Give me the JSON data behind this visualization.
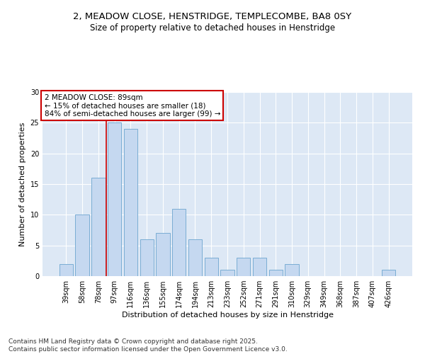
{
  "title_line1": "2, MEADOW CLOSE, HENSTRIDGE, TEMPLECOMBE, BA8 0SY",
  "title_line2": "Size of property relative to detached houses in Henstridge",
  "xlabel": "Distribution of detached houses by size in Henstridge",
  "ylabel": "Number of detached properties",
  "categories": [
    "39sqm",
    "58sqm",
    "78sqm",
    "97sqm",
    "116sqm",
    "136sqm",
    "155sqm",
    "174sqm",
    "194sqm",
    "213sqm",
    "233sqm",
    "252sqm",
    "271sqm",
    "291sqm",
    "310sqm",
    "329sqm",
    "349sqm",
    "368sqm",
    "387sqm",
    "407sqm",
    "426sqm"
  ],
  "values": [
    2,
    10,
    16,
    25,
    24,
    6,
    7,
    11,
    6,
    3,
    1,
    3,
    3,
    1,
    2,
    0,
    0,
    0,
    0,
    0,
    1
  ],
  "bar_color": "#c5d8f0",
  "bar_edge_color": "#7aadd4",
  "vline_x": 2.5,
  "vline_color": "#cc0000",
  "annotation_text": "2 MEADOW CLOSE: 89sqm\n← 15% of detached houses are smaller (18)\n84% of semi-detached houses are larger (99) →",
  "annotation_box_color": "#ffffff",
  "annotation_box_edge": "#cc0000",
  "ylim": [
    0,
    30
  ],
  "yticks": [
    0,
    5,
    10,
    15,
    20,
    25,
    30
  ],
  "background_color": "#dde8f5",
  "footer_text": "Contains HM Land Registry data © Crown copyright and database right 2025.\nContains public sector information licensed under the Open Government Licence v3.0.",
  "title_fontsize": 9.5,
  "subtitle_fontsize": 8.5,
  "axis_label_fontsize": 8,
  "tick_fontsize": 7,
  "annotation_fontsize": 7.5,
  "footer_fontsize": 6.5
}
